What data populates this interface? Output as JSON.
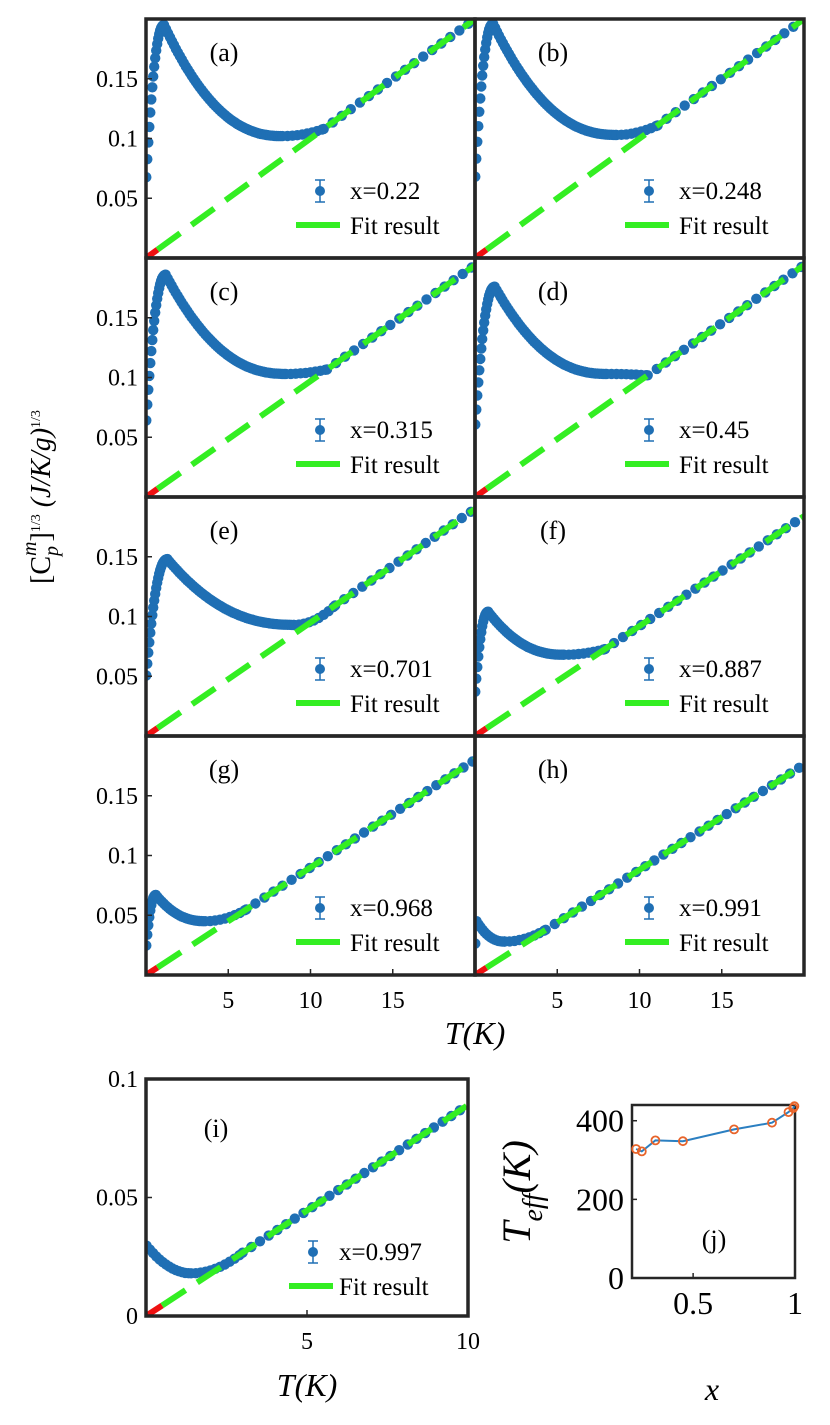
{
  "chart_data": {
    "type": "scatter",
    "colors": {
      "data": "#1f6fb4",
      "fit": "#33ee22",
      "low_t": "#ee1111",
      "teff_line": "#2b7fc1",
      "teff_marker": "#e8642a",
      "frame": "#262626"
    },
    "grid": {
      "ylabel_prefix": "[C",
      "ylabel_sub": "p",
      "ylabel_sup": "m",
      "ylabel_exp": "1",
      "ylabel_exp_den": "3",
      "ylabel_units": "(J/K/g)",
      "xlabel": "T(K)",
      "xlim": [
        0,
        20
      ],
      "ylim": [
        0,
        0.2
      ],
      "xticks": [
        "5",
        "10",
        "15"
      ],
      "yticks": [
        "0.05",
        "0.1",
        "0.15"
      ],
      "panels": [
        {
          "label": "(a)",
          "series_name": "x=0.22",
          "fit_name": "Fit result",
          "x": 0.22,
          "slope": 0.01,
          "peak_T": 1.1,
          "peak_val": 0.195,
          "min_T": 8.3,
          "min_val": 0.102
        },
        {
          "label": "(b)",
          "series_name": "x=0.248",
          "fit_name": "Fit result",
          "x": 0.248,
          "slope": 0.01,
          "peak_T": 1.1,
          "peak_val": 0.196,
          "min_T": 8.6,
          "min_val": 0.103
        },
        {
          "label": "(c)",
          "series_name": "x=0.315",
          "fit_name": "Fit result",
          "x": 0.315,
          "slope": 0.0097,
          "peak_T": 1.2,
          "peak_val": 0.186,
          "min_T": 8.5,
          "min_val": 0.103
        },
        {
          "label": "(d)",
          "series_name": "x=0.45",
          "fit_name": "Fit result",
          "x": 0.45,
          "slope": 0.0097,
          "peak_T": 1.2,
          "peak_val": 0.176,
          "min_T": 8.0,
          "min_val": 0.103
        },
        {
          "label": "(e)",
          "series_name": "x=0.701",
          "fit_name": "Fit result",
          "x": 0.701,
          "slope": 0.0095,
          "peak_T": 1.3,
          "peak_val": 0.148,
          "min_T": 9.0,
          "min_val": 0.093
        },
        {
          "label": "(f)",
          "series_name": "x=0.887",
          "fit_name": "Fit result",
          "x": 0.887,
          "slope": 0.0092,
          "peak_T": 0.8,
          "peak_val": 0.104,
          "min_T": 5.4,
          "min_val": 0.068
        },
        {
          "label": "(g)",
          "series_name": "x=0.968",
          "fit_name": "Fit result",
          "x": 0.968,
          "slope": 0.009,
          "peak_T": 0.6,
          "peak_val": 0.067,
          "min_T": 3.6,
          "min_val": 0.045
        },
        {
          "label": "(h)",
          "series_name": "x=0.991",
          "fit_name": "Fit result",
          "x": 0.991,
          "slope": 0.0088,
          "peak_T": 0.1,
          "peak_val": 0.045,
          "min_T": 1.8,
          "min_val": 0.028
        }
      ]
    },
    "panel_i": {
      "label": "(i)",
      "series_name": "x=0.997",
      "fit_name": "Fit result",
      "xlabel": "T(K)",
      "xlim": [
        0,
        10
      ],
      "ylim": [
        0,
        0.1
      ],
      "xticks": [
        "5",
        "10"
      ],
      "yticks": [
        "0",
        "0.05",
        "0.1"
      ],
      "slope": 0.0089,
      "start_val": 0.03,
      "min_T": 1.4,
      "min_val": 0.018
    },
    "panel_j": {
      "label": "(j)",
      "xlabel": "x",
      "ylabel_main": "T",
      "ylabel_sub": "eff",
      "ylabel_units": "(K)",
      "xlim": [
        0.2,
        1.0
      ],
      "ylim": [
        0,
        440
      ],
      "xticks": [
        "0.5",
        "1"
      ],
      "yticks": [
        "0",
        "200",
        "400"
      ],
      "x": [
        0.22,
        0.248,
        0.315,
        0.45,
        0.701,
        0.887,
        0.968,
        0.991,
        0.997
      ],
      "y": [
        328,
        322,
        350,
        348,
        378,
        395,
        422,
        432,
        437
      ]
    }
  }
}
